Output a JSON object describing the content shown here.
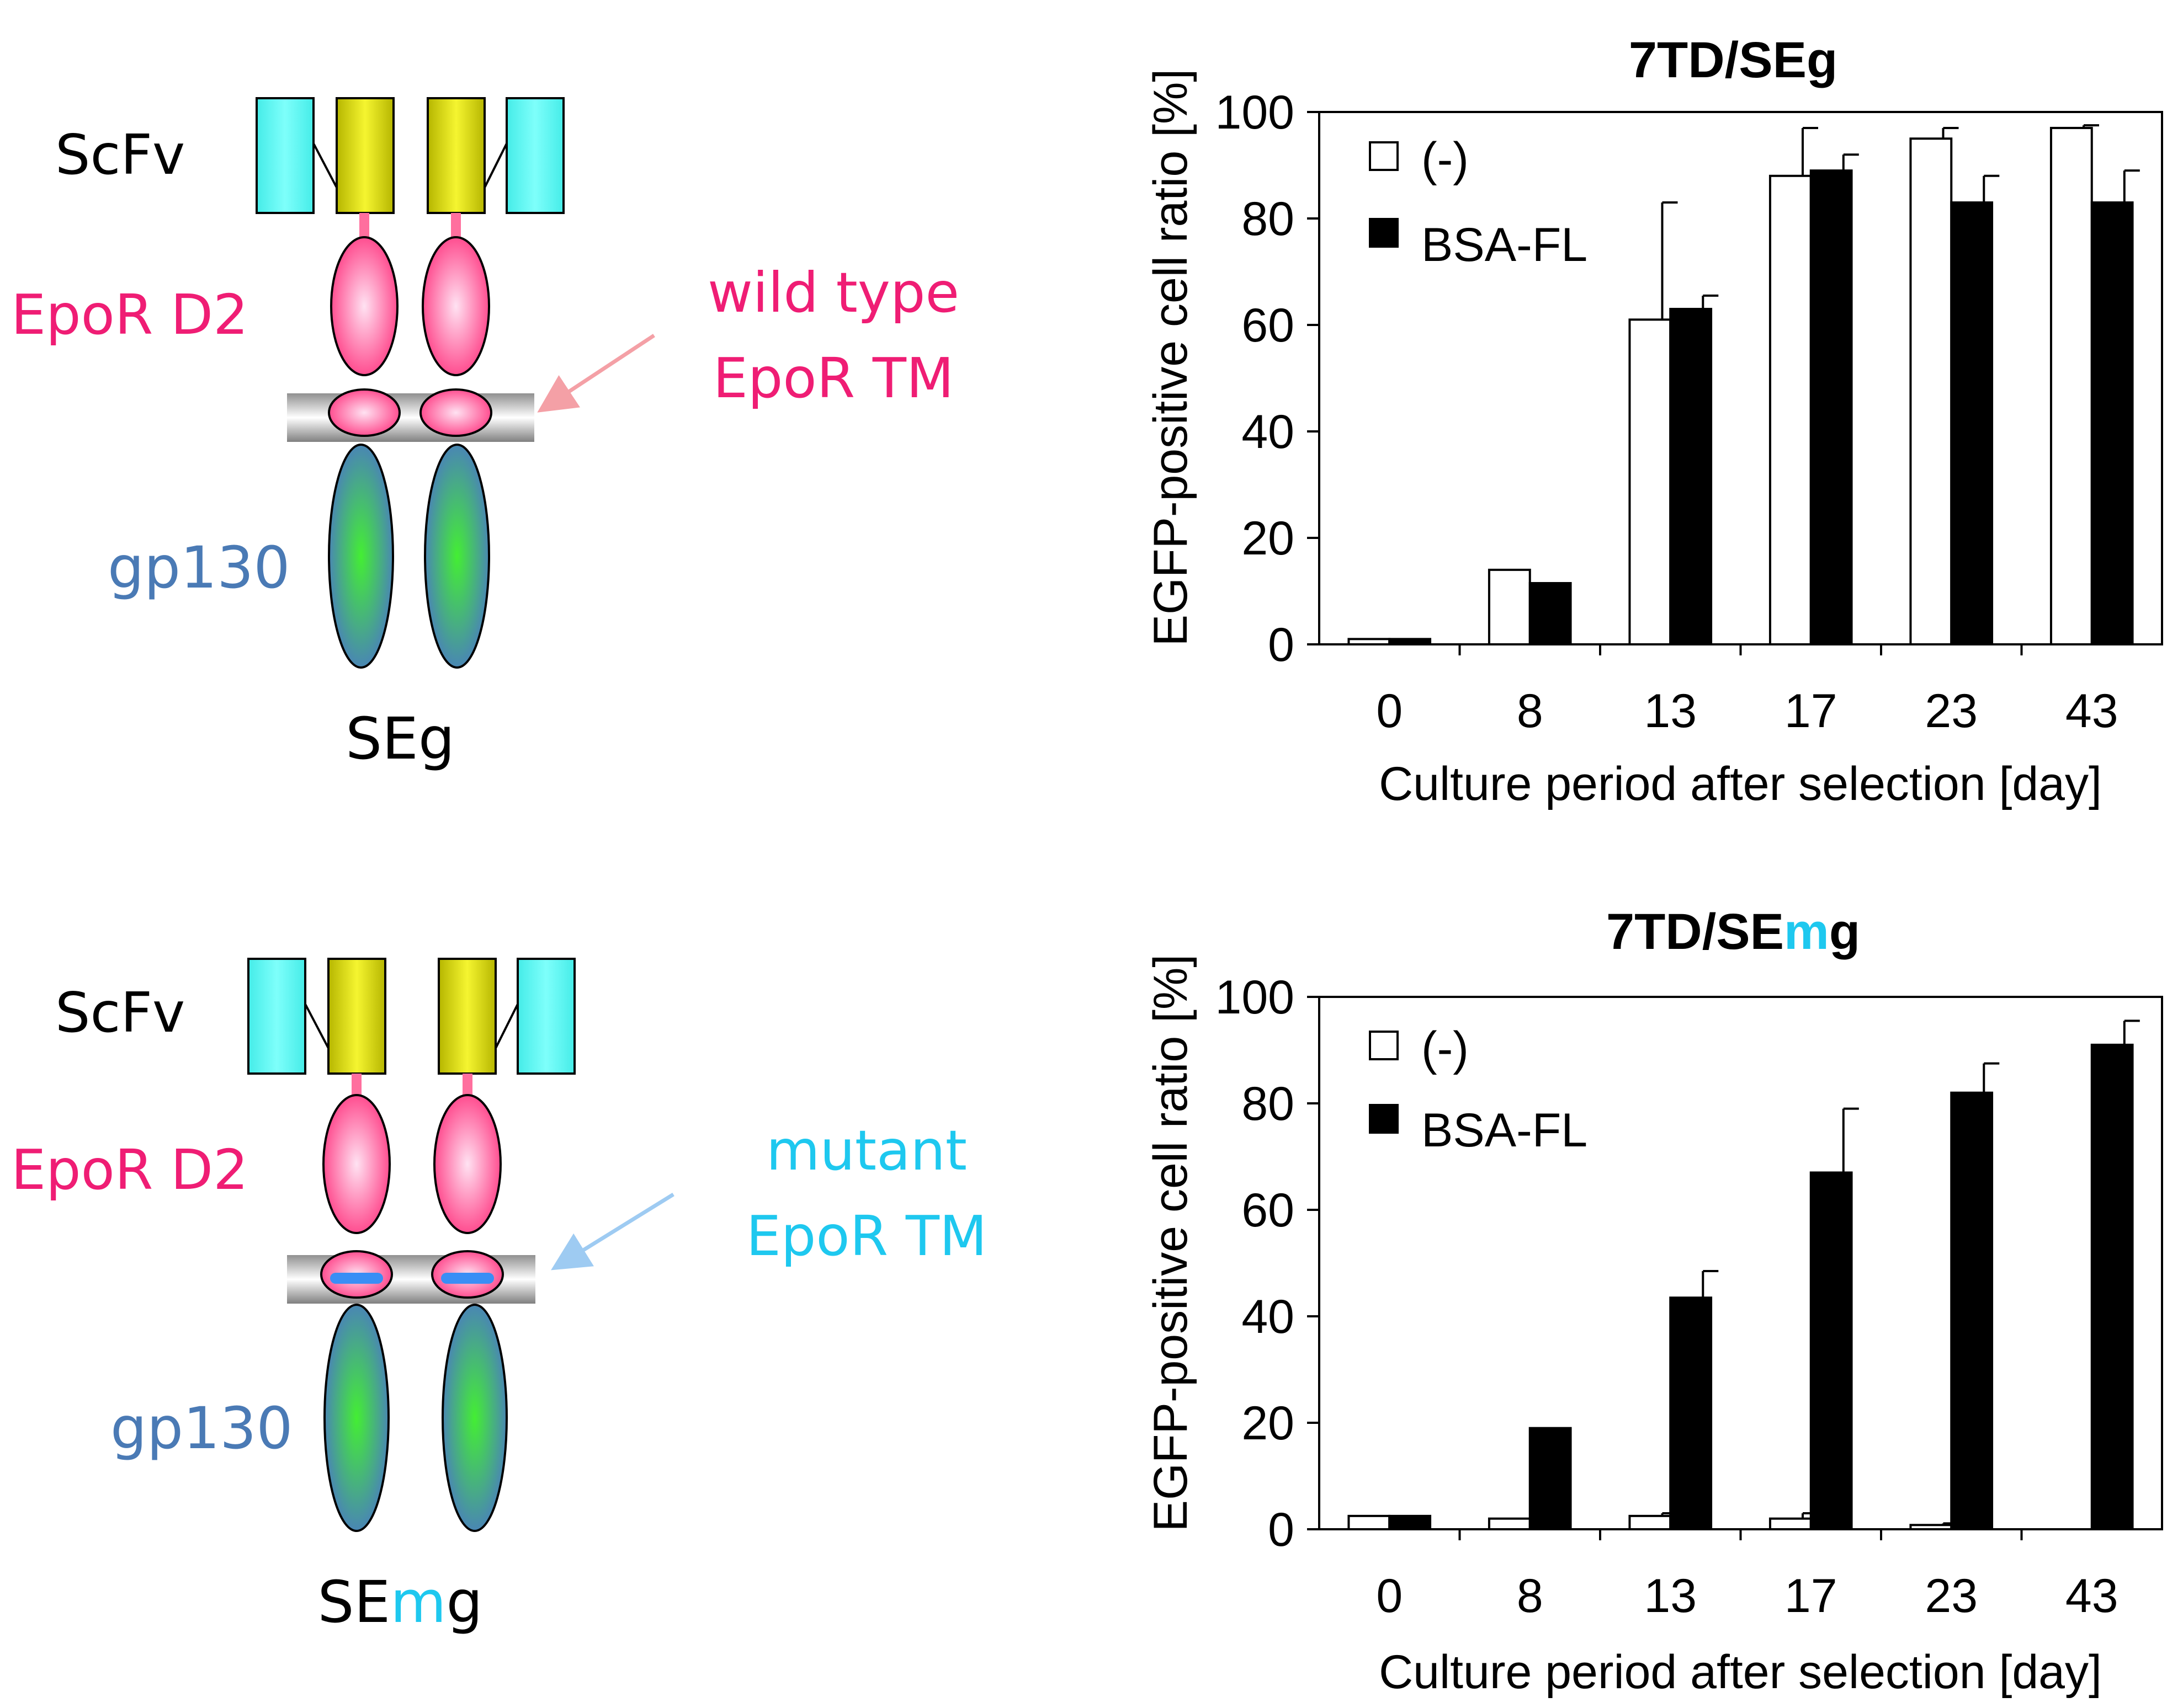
{
  "diagrams": [
    {
      "construct_label": "SEg",
      "construct_parts": [
        "SE",
        "",
        "g"
      ],
      "scfv_label": "ScFv",
      "epor_d2_label": "EpoR D2",
      "tm_label_line1": "wild type",
      "tm_label_line2": "EpoR TM",
      "gp130_label": "gp130",
      "tm_mutant": false
    },
    {
      "construct_label": "SEmg",
      "construct_parts": [
        "SE",
        "m",
        "g"
      ],
      "scfv_label": "ScFv",
      "epor_d2_label": "EpoR D2",
      "tm_label_line1": "mutant",
      "tm_label_line2": "EpoR TM",
      "gp130_label": "gp130",
      "tm_mutant": true
    }
  ],
  "colors": {
    "scfv_vh": "#55f5f0",
    "scfv_vl": "#d8d820",
    "epor": "#ff3f86",
    "epor_center": "#ffe0f0",
    "gp130_edge": "#4a7cc0",
    "gp130_center": "#44ee33",
    "wild_type_text": "#ef1d74",
    "mutant_text": "#1ec8ef",
    "gp130_text": "#4a7ab5",
    "wild_type_arrow": "#f4a0a6",
    "mutant_arrow": "#9ecbf2",
    "mutation_bar": "#3a8ef5",
    "bar_minus": "#ffffff",
    "bar_bsafl": "#000000"
  },
  "chart_data": [
    {
      "type": "bar",
      "title_parts": [
        "7TD/SE",
        "",
        "g"
      ],
      "xlabel": "Culture period after selection [day]",
      "ylabel": "EGFP-positive cell ratio [%]",
      "categories": [
        "0",
        "8",
        "13",
        "17",
        "23",
        "43"
      ],
      "ylim": [
        0,
        100
      ],
      "yticks": [
        "0",
        "20",
        "40",
        "60",
        "80",
        "100"
      ],
      "legend_position": "top-left",
      "series": [
        {
          "name": "(-)",
          "values": [
            1,
            14,
            61,
            88,
            95,
            97
          ],
          "errors": [
            0,
            0,
            22,
            9,
            2,
            0.5
          ]
        },
        {
          "name": "BSA-FL",
          "values": [
            1,
            11.5,
            63,
            89,
            83,
            83
          ],
          "errors": [
            0,
            0,
            2.5,
            3,
            5,
            6
          ]
        }
      ]
    },
    {
      "type": "bar",
      "title_parts": [
        "7TD/SE",
        "m",
        "g"
      ],
      "xlabel": "Culture period after selection [day]",
      "ylabel": "EGFP-positive cell ratio [%]",
      "categories": [
        "0",
        "8",
        "13",
        "17",
        "23",
        "43"
      ],
      "ylim": [
        0,
        100
      ],
      "yticks": [
        "0",
        "20",
        "40",
        "60",
        "80",
        "100"
      ],
      "legend_position": "top-left",
      "series": [
        {
          "name": "(-)",
          "values": [
            2.5,
            2,
            2.5,
            2,
            0.8,
            0
          ],
          "errors": [
            0,
            0,
            0.5,
            1,
            0.3,
            0
          ]
        },
        {
          "name": "BSA-FL",
          "values": [
            2.5,
            19,
            43.5,
            67,
            82,
            91
          ],
          "errors": [
            0,
            0,
            5,
            12,
            5.5,
            4.5
          ]
        }
      ]
    }
  ]
}
